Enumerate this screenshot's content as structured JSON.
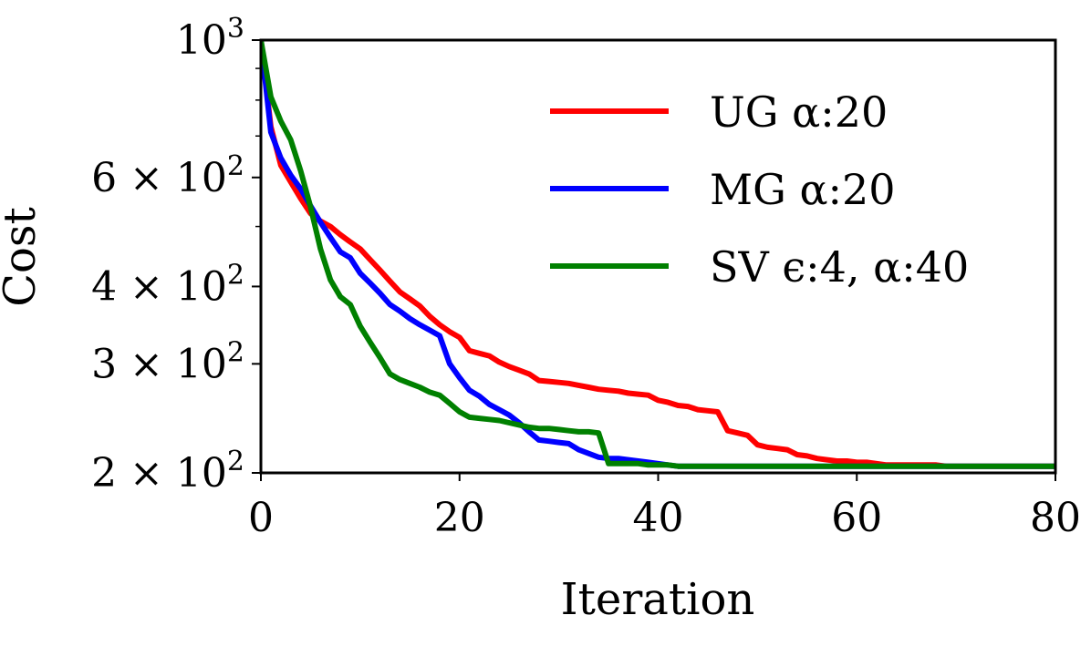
{
  "chart_data": {
    "type": "line",
    "title": "",
    "xlabel": "Iteration",
    "ylabel": "Cost",
    "xlim": [
      0,
      80
    ],
    "ylim": [
      200,
      1000
    ],
    "yscale": "log",
    "grid": false,
    "legend_position": "top-right",
    "x_ticks": [
      {
        "value": 0,
        "label": "0"
      },
      {
        "value": 20,
        "label": "20"
      },
      {
        "value": 40,
        "label": "40"
      },
      {
        "value": 60,
        "label": "60"
      },
      {
        "value": 80,
        "label": "80"
      }
    ],
    "y_ticks": [
      {
        "value": 200,
        "mantissa": "2 × 10",
        "exp": "2"
      },
      {
        "value": 300,
        "mantissa": "3 × 10",
        "exp": "2"
      },
      {
        "value": 400,
        "mantissa": "4 × 10",
        "exp": "2"
      },
      {
        "value": 600,
        "mantissa": "6 × 10",
        "exp": "2"
      },
      {
        "value": 1000,
        "mantissa": "10",
        "exp": "3"
      }
    ],
    "y_minor_ticks": [
      500,
      700,
      800,
      900
    ],
    "series": [
      {
        "name": "UG α:20",
        "color": "#ff0000",
        "x": [
          0,
          1,
          2,
          3,
          4,
          5,
          6,
          7,
          8,
          9,
          10,
          11,
          12,
          13,
          14,
          15,
          16,
          17,
          18,
          19,
          20,
          21,
          22,
          23,
          24,
          25,
          26,
          27,
          28,
          29,
          30,
          31,
          32,
          33,
          34,
          35,
          36,
          37,
          38,
          39,
          40,
          41,
          42,
          43,
          44,
          45,
          46,
          47,
          48,
          49,
          50,
          51,
          52,
          53,
          54,
          55,
          56,
          57,
          58,
          59,
          60,
          61,
          62,
          63,
          64,
          65,
          66,
          67,
          68,
          69,
          70,
          71,
          72,
          73,
          74,
          75,
          76,
          77,
          78,
          79,
          80
        ],
        "y": [
          1000,
          725,
          628,
          590,
          555,
          525,
          510,
          500,
          485,
          472,
          460,
          442,
          425,
          408,
          392,
          382,
          372,
          358,
          347,
          338,
          331,
          315,
          312,
          309,
          302,
          297,
          293,
          289,
          282,
          281,
          280,
          279,
          277,
          275,
          273,
          272,
          271,
          269,
          268,
          267,
          262,
          260,
          257,
          256,
          253,
          252,
          251,
          234,
          232,
          230,
          222,
          220,
          219,
          218,
          214,
          213,
          211,
          210,
          209,
          209,
          208,
          208,
          207,
          206,
          206,
          206,
          206,
          206,
          206,
          205,
          205,
          205,
          205,
          205,
          205,
          205,
          205,
          205,
          205,
          205,
          205
        ]
      },
      {
        "name": "MG α:20",
        "color": "#0000ff",
        "x": [
          0,
          1,
          2,
          3,
          4,
          5,
          6,
          7,
          8,
          9,
          10,
          11,
          12,
          13,
          14,
          15,
          16,
          17,
          18,
          19,
          20,
          21,
          22,
          23,
          24,
          25,
          26,
          27,
          28,
          29,
          30,
          31,
          32,
          33,
          34,
          35,
          36,
          37,
          38,
          39,
          40,
          41,
          42,
          43,
          44,
          45,
          46,
          47,
          48,
          49,
          50,
          51,
          52,
          53,
          54,
          55,
          56,
          57,
          58,
          59,
          60,
          61,
          62,
          63,
          64,
          65,
          66,
          67,
          68,
          69,
          70,
          71,
          72,
          73,
          74,
          75,
          76,
          77,
          78,
          79,
          80
        ],
        "y": [
          1000,
          710,
          645,
          605,
          575,
          540,
          508,
          480,
          455,
          445,
          420,
          405,
          390,
          374,
          365,
          355,
          347,
          340,
          333,
          300,
          285,
          272,
          266,
          258,
          253,
          248,
          241,
          233,
          226,
          225,
          224,
          223,
          218,
          215,
          212,
          211,
          211,
          210,
          209,
          208,
          207,
          206,
          205,
          205,
          205,
          205,
          205,
          205,
          205,
          205,
          205,
          205,
          205,
          205,
          205,
          205,
          205,
          205,
          205,
          205,
          205,
          205,
          205,
          205,
          205,
          205,
          205,
          205,
          205,
          205,
          205,
          205,
          205,
          205,
          205,
          205,
          205,
          205,
          205,
          205,
          205
        ]
      },
      {
        "name": "SV ϵ:4, α:40",
        "color": "#008000",
        "x": [
          0,
          1,
          2,
          3,
          4,
          5,
          6,
          7,
          8,
          9,
          10,
          11,
          12,
          13,
          14,
          15,
          16,
          17,
          18,
          19,
          20,
          21,
          22,
          23,
          24,
          25,
          26,
          27,
          28,
          29,
          30,
          31,
          32,
          33,
          34,
          35,
          36,
          37,
          38,
          39,
          40,
          41,
          42,
          43,
          44,
          45,
          46,
          47,
          48,
          49,
          50,
          51,
          52,
          53,
          54,
          55,
          56,
          57,
          58,
          59,
          60,
          61,
          62,
          63,
          64,
          65,
          66,
          67,
          68,
          69,
          70,
          71,
          72,
          73,
          74,
          75,
          76,
          77,
          78,
          79,
          80
        ],
        "y": [
          1000,
          810,
          740,
          690,
          615,
          538,
          460,
          410,
          385,
          374,
          345,
          325,
          307,
          289,
          283,
          279,
          275,
          270,
          267,
          259,
          251,
          246,
          245,
          244,
          243,
          241,
          239,
          237,
          236,
          236,
          235,
          234,
          233,
          233,
          232,
          207,
          207,
          207,
          207,
          206,
          206,
          206,
          205,
          205,
          205,
          205,
          205,
          205,
          205,
          205,
          205,
          205,
          205,
          205,
          205,
          205,
          205,
          205,
          205,
          205,
          205,
          205,
          205,
          205,
          205,
          205,
          205,
          205,
          205,
          205,
          205,
          205,
          205,
          205,
          205,
          205,
          205,
          205,
          205,
          205,
          205
        ]
      }
    ]
  }
}
